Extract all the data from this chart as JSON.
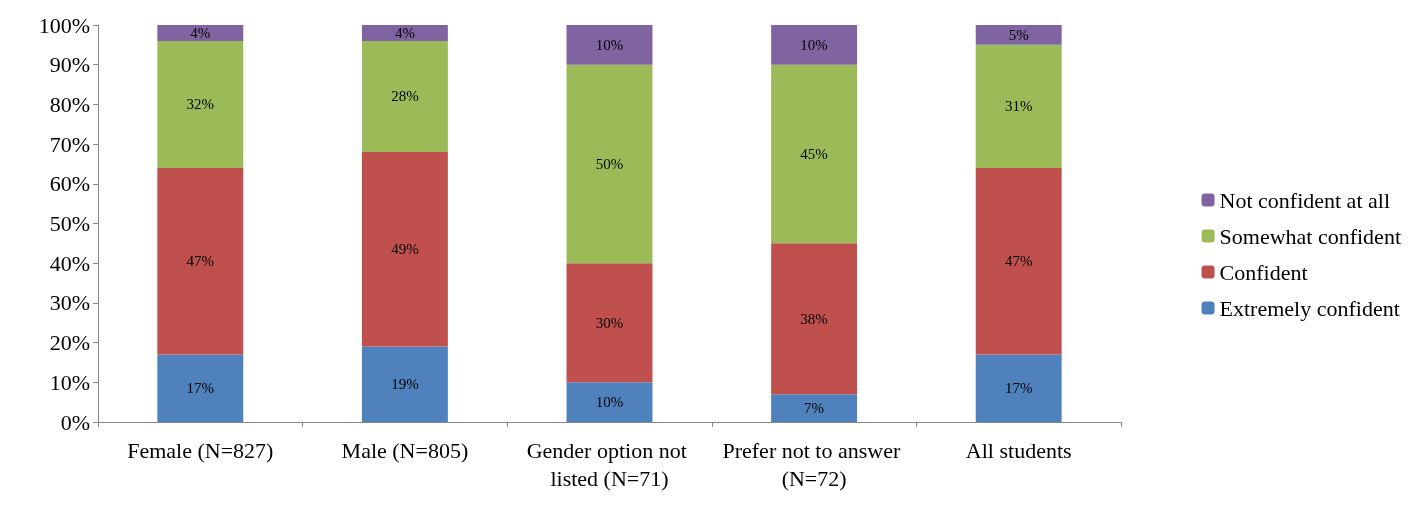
{
  "chart_data": {
    "type": "bar",
    "stacked": true,
    "categories": [
      "Female (N=827)",
      "Male (N=805)",
      "Gender option not listed (N=71)",
      "Prefer not to answer (N=72)",
      "All students"
    ],
    "series": [
      {
        "name": "Extremely confident",
        "color": "#4f81bd",
        "values": [
          17,
          19,
          10,
          7,
          17
        ],
        "value_labels": [
          "17%",
          "19%",
          "10%",
          "7%",
          "17%"
        ]
      },
      {
        "name": "Confident",
        "color": "#c0504d",
        "values": [
          47,
          49,
          30,
          38,
          47
        ],
        "value_labels": [
          "47%",
          "49%",
          "30%",
          "38%",
          "47%"
        ]
      },
      {
        "name": "Somewhat confident",
        "color": "#9bbb59",
        "values": [
          32,
          28,
          50,
          45,
          31
        ],
        "value_labels": [
          "32%",
          "28%",
          "50%",
          "45%",
          "31%"
        ]
      },
      {
        "name": "Not confident at all",
        "color": "#8064a2",
        "values": [
          4,
          4,
          10,
          10,
          5
        ],
        "value_labels": [
          "4%",
          "4%",
          "10%",
          "10%",
          "5%"
        ]
      }
    ],
    "ylim": [
      0,
      100
    ],
    "yticks": [
      {
        "value": 0,
        "label": "0%"
      },
      {
        "value": 10,
        "label": "10%"
      },
      {
        "value": 20,
        "label": "20%"
      },
      {
        "value": 30,
        "label": "30%"
      },
      {
        "value": 40,
        "label": "40%"
      },
      {
        "value": 50,
        "label": "50%"
      },
      {
        "value": 60,
        "label": "60%"
      },
      {
        "value": 70,
        "label": "70%"
      },
      {
        "value": 80,
        "label": "80%"
      },
      {
        "value": 90,
        "label": "90%"
      },
      {
        "value": 100,
        "label": "100%"
      }
    ],
    "grid": false,
    "legend": "right"
  }
}
